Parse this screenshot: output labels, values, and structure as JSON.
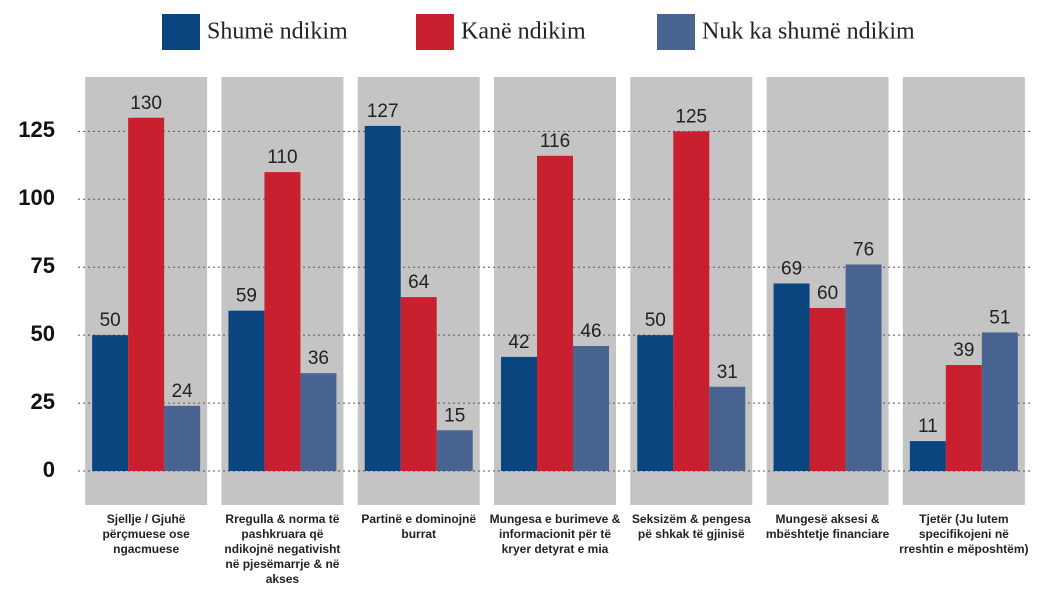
{
  "chart_data": {
    "type": "bar",
    "categories": [
      "Sjellje / Gjuhë përçmuese ose ngacmuese",
      "Rregulla & norma të pashkruara që ndikojnë negativisht në pjesëmarrje & në akses",
      "Partinë e dominojnë burrat",
      "Mungesa e burimeve & informacionit për të kryer detyrat e mia",
      "Seksizëm & pengesa pë shkak të gjinisë",
      "Mungesë aksesi & mbështetje financiare",
      "Tjetër (Ju lutem specifikojeni në rreshtin e mëposhtëm)"
    ],
    "series": [
      {
        "name": "Shumë ndikim",
        "color": "#0b4580",
        "values": [
          50,
          59,
          127,
          42,
          50,
          69,
          11
        ]
      },
      {
        "name": "Kanë ndikim",
        "color": "#c8202f",
        "values": [
          130,
          110,
          64,
          116,
          125,
          60,
          39
        ]
      },
      {
        "name": "Nuk ka shumë ndikim",
        "color": "#4a6491",
        "values": [
          24,
          36,
          15,
          46,
          31,
          76,
          51
        ]
      }
    ],
    "ylim": [
      0,
      145
    ],
    "yticks": [
      0,
      25,
      50,
      75,
      100,
      125
    ],
    "grid": true,
    "legend": "top"
  }
}
